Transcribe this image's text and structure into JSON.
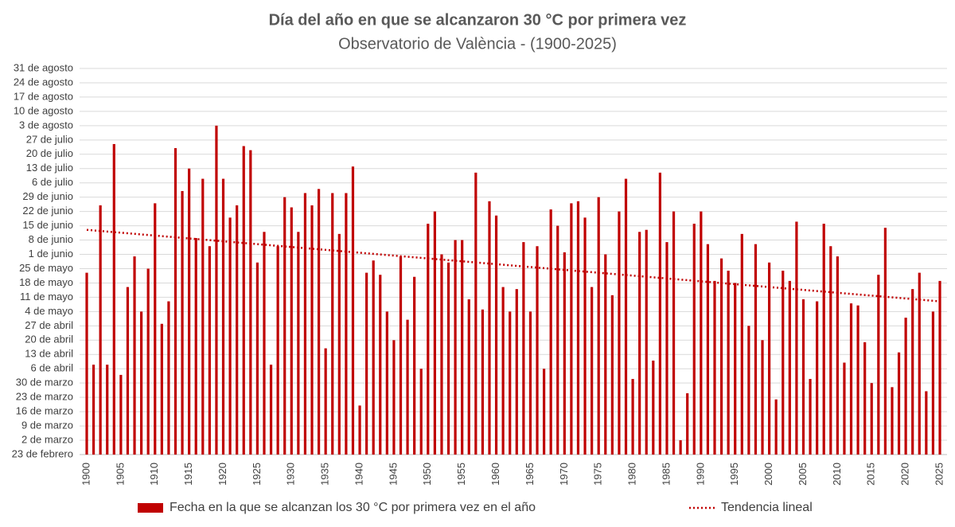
{
  "chart_data": {
    "type": "bar",
    "title": "Día del año en que se alcanzaron 30 °C por primera vez",
    "subtitle": "Observatorio de València - (1900-2025)",
    "categories": [
      "1900",
      null,
      null,
      null,
      null,
      "1905",
      null,
      null,
      null,
      null,
      "1910",
      null,
      null,
      null,
      null,
      "1915",
      null,
      null,
      null,
      null,
      "1920",
      null,
      null,
      null,
      null,
      "1925",
      null,
      null,
      null,
      null,
      "1930",
      null,
      null,
      null,
      null,
      "1935",
      null,
      null,
      null,
      null,
      "1940",
      null,
      null,
      null,
      null,
      "1945",
      null,
      null,
      null,
      null,
      "1950",
      null,
      null,
      null,
      null,
      "1955",
      null,
      null,
      null,
      null,
      "1960",
      null,
      null,
      null,
      null,
      "1965",
      null,
      null,
      null,
      null,
      "1970",
      null,
      null,
      null,
      null,
      "1975",
      null,
      null,
      null,
      null,
      "1980",
      null,
      null,
      null,
      null,
      "1985",
      null,
      null,
      null,
      null,
      "1990",
      null,
      null,
      null,
      null,
      "1995",
      null,
      null,
      null,
      null,
      "2000",
      null,
      null,
      null,
      null,
      "2005",
      null,
      null,
      null,
      null,
      "2010",
      null,
      null,
      null,
      null,
      "2015",
      null,
      null,
      null,
      null,
      "2020",
      null,
      null,
      null,
      null,
      "2025"
    ],
    "series": [
      {
        "name": "Fecha en la que se alcanzan los 30 °C por primera vez en el año",
        "color": "#c00000",
        "values": [
          143,
          98,
          176,
          98,
          206,
          93,
          136,
          151,
          124,
          145,
          177,
          118,
          129,
          204,
          183,
          194,
          160,
          189,
          156,
          215,
          189,
          170,
          176,
          205,
          203,
          148,
          163,
          98,
          156,
          180,
          175,
          163,
          182,
          176,
          184,
          106,
          182,
          162,
          182,
          195,
          78,
          143,
          149,
          142,
          124,
          110,
          151,
          120,
          141,
          96,
          167,
          173,
          152,
          148,
          159,
          159,
          130,
          192,
          125,
          178,
          171,
          136,
          124,
          135,
          158,
          124,
          156,
          96,
          174,
          166,
          153,
          177,
          178,
          170,
          136,
          180,
          152,
          132,
          173,
          189,
          91,
          163,
          164,
          100,
          192,
          158,
          173,
          61,
          84,
          167,
          173,
          157,
          139,
          150,
          144,
          138,
          162,
          117,
          157,
          110,
          148,
          81,
          144,
          139,
          168,
          130,
          91,
          129,
          167,
          156,
          151,
          99,
          128,
          127,
          109,
          89,
          142,
          165,
          87,
          104,
          121,
          135,
          143,
          85,
          124,
          139
        ]
      },
      {
        "name": "Tendencia lineal",
        "color": "#c00000",
        "type": "line",
        "style": "dotted",
        "x": [
          1900,
          2025
        ],
        "values": [
          164,
          129
        ]
      }
    ],
    "ylim": [
      54,
      243
    ],
    "yticks": [
      {
        "value": 54,
        "label": "23 de febrero"
      },
      {
        "value": 61,
        "label": "2 de marzo"
      },
      {
        "value": 68,
        "label": "9 de marzo"
      },
      {
        "value": 75,
        "label": "16 de marzo"
      },
      {
        "value": 82,
        "label": "23 de marzo"
      },
      {
        "value": 89,
        "label": "30 de marzo"
      },
      {
        "value": 96,
        "label": "6 de abril"
      },
      {
        "value": 103,
        "label": "13 de abril"
      },
      {
        "value": 110,
        "label": "20 de abril"
      },
      {
        "value": 117,
        "label": "27 de abril"
      },
      {
        "value": 124,
        "label": "4 de mayo"
      },
      {
        "value": 131,
        "label": "11 de mayo"
      },
      {
        "value": 138,
        "label": "18 de mayo"
      },
      {
        "value": 145,
        "label": "25 de mayo"
      },
      {
        "value": 152,
        "label": "1 de junio"
      },
      {
        "value": 159,
        "label": "8 de junio"
      },
      {
        "value": 166,
        "label": "15 de junio"
      },
      {
        "value": 173,
        "label": "22 de junio"
      },
      {
        "value": 180,
        "label": "29 de junio"
      },
      {
        "value": 187,
        "label": "6 de julio"
      },
      {
        "value": 194,
        "label": "13 de julio"
      },
      {
        "value": 201,
        "label": "20 de julio"
      },
      {
        "value": 208,
        "label": "27 de julio"
      },
      {
        "value": 215,
        "label": "3 de agosto"
      },
      {
        "value": 222,
        "label": "10 de agosto"
      },
      {
        "value": 229,
        "label": "17 de agosto"
      },
      {
        "value": 236,
        "label": "24 de agosto"
      },
      {
        "value": 243,
        "label": "31 de agosto"
      }
    ],
    "grid": true,
    "legend": "bottom"
  }
}
